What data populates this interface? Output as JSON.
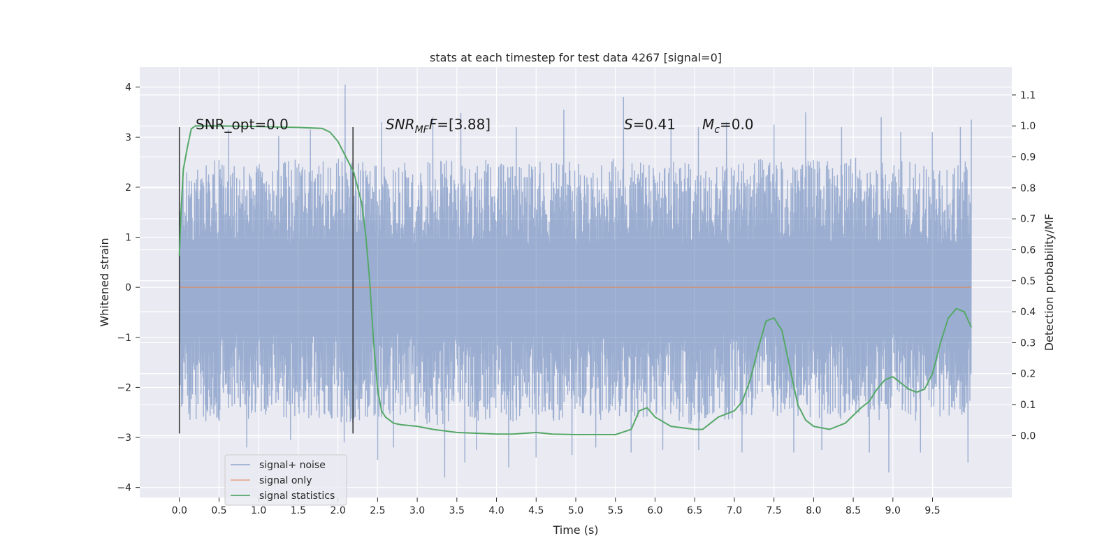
{
  "chart_data": {
    "type": "line",
    "title": "stats at each timestep for test data 4267 [signal=0]",
    "xlabel": "Time (s)",
    "ylabel": "Whitened strain",
    "ylabel_right": "Detection probability/MF",
    "xlim": [
      -0.5,
      10.5
    ],
    "ylim": [
      -4.2,
      4.4
    ],
    "ylim_right": [
      -0.2,
      1.19
    ],
    "x_ticks": [
      "0.0",
      "0.5",
      "1.0",
      "1.5",
      "2.0",
      "2.5",
      "3.0",
      "3.5",
      "4.0",
      "4.5",
      "5.0",
      "5.5",
      "6.0",
      "6.5",
      "7.0",
      "7.5",
      "8.0",
      "8.5",
      "9.0",
      "9.5"
    ],
    "y_ticks": [
      "−4",
      "−3",
      "−2",
      "−1",
      "0",
      "1",
      "2",
      "3",
      "4"
    ],
    "y_right_ticks": [
      "0.0",
      "0.1",
      "0.2",
      "0.3",
      "0.4",
      "0.5",
      "0.6",
      "0.7",
      "0.8",
      "0.9",
      "1.0",
      "1.1"
    ],
    "grid": true,
    "legend_position": "lower-left",
    "annotations": {
      "snr_opt": "SNR_opt=0.0",
      "snr_mf_prefix": "SNR",
      "snr_mf_sub": "MF",
      "snr_mf_value": "=[3.88]",
      "s_name": "S",
      "s_value": "=0.41",
      "mc_name": "M",
      "mc_sub": "c",
      "mc_value": "=0.0"
    },
    "vlines": [
      {
        "x": 0.0,
        "y": [
          -2.92,
          3.2
        ]
      },
      {
        "x": 2.19,
        "y": [
          -2.92,
          3.2
        ]
      }
    ],
    "series": [
      {
        "name": "signal+ noise",
        "axis": "left",
        "color": "#4c72b0",
        "x_range": [
          0.0,
          9.99
        ],
        "envelope": [
          [
            0.0,
            2.3,
            -2.6
          ],
          [
            0.25,
            2.5,
            -2.7
          ],
          [
            0.5,
            2.6,
            -2.8
          ],
          [
            0.75,
            2.4,
            -2.6
          ],
          [
            1.0,
            2.5,
            -2.7
          ],
          [
            1.25,
            2.5,
            -2.6
          ],
          [
            1.5,
            2.6,
            -2.7
          ],
          [
            1.75,
            2.5,
            -2.6
          ],
          [
            2.0,
            2.6,
            -2.7
          ],
          [
            2.25,
            2.5,
            -2.8
          ],
          [
            2.5,
            2.5,
            -2.7
          ],
          [
            2.75,
            2.6,
            -2.6
          ],
          [
            3.0,
            2.4,
            -2.7
          ],
          [
            3.25,
            2.6,
            -2.8
          ],
          [
            3.5,
            2.5,
            -2.6
          ],
          [
            3.75,
            2.5,
            -2.7
          ],
          [
            4.0,
            2.6,
            -2.6
          ],
          [
            4.25,
            2.4,
            -2.7
          ],
          [
            4.5,
            2.5,
            -2.6
          ],
          [
            4.75,
            2.6,
            -2.7
          ],
          [
            5.0,
            2.5,
            -2.6
          ],
          [
            5.25,
            2.5,
            -2.7
          ],
          [
            5.5,
            2.6,
            -2.6
          ],
          [
            5.75,
            2.5,
            -2.7
          ],
          [
            6.0,
            2.5,
            -2.6
          ],
          [
            6.25,
            2.6,
            -2.7
          ],
          [
            6.5,
            2.5,
            -2.8
          ],
          [
            6.75,
            2.4,
            -2.6
          ],
          [
            7.0,
            2.5,
            -2.7
          ],
          [
            7.25,
            2.6,
            -2.6
          ],
          [
            7.5,
            2.5,
            -2.7
          ],
          [
            7.75,
            2.5,
            -2.6
          ],
          [
            8.0,
            2.6,
            -2.7
          ],
          [
            8.25,
            2.5,
            -2.6
          ],
          [
            8.5,
            2.6,
            -2.8
          ],
          [
            8.75,
            2.5,
            -2.7
          ],
          [
            9.0,
            2.5,
            -2.6
          ],
          [
            9.25,
            2.6,
            -2.7
          ],
          [
            9.5,
            2.4,
            -2.6
          ],
          [
            9.75,
            2.5,
            -2.7
          ],
          [
            9.99,
            2.6,
            -2.6
          ]
        ],
        "peaks": [
          [
            0.62,
            3.15
          ],
          [
            0.85,
            -3.2
          ],
          [
            1.25,
            3.02
          ],
          [
            1.4,
            -3.05
          ],
          [
            1.65,
            3.15
          ],
          [
            2.09,
            4.05
          ],
          [
            2.08,
            -3.1
          ],
          [
            2.5,
            -3.45
          ],
          [
            2.55,
            3.3
          ],
          [
            2.7,
            -3.2
          ],
          [
            3.2,
            3.4
          ],
          [
            3.35,
            -3.8
          ],
          [
            3.55,
            3.48
          ],
          [
            3.6,
            -3.5
          ],
          [
            3.75,
            -3.25
          ],
          [
            4.15,
            -3.6
          ],
          [
            4.25,
            3.2
          ],
          [
            4.5,
            -3.4
          ],
          [
            4.85,
            3.55
          ],
          [
            4.95,
            -3.35
          ],
          [
            5.25,
            -3.2
          ],
          [
            5.6,
            3.8
          ],
          [
            5.7,
            -3.3
          ],
          [
            6.2,
            3.3
          ],
          [
            6.1,
            -3.25
          ],
          [
            6.55,
            3.2
          ],
          [
            6.55,
            -3.25
          ],
          [
            6.9,
            3.3
          ],
          [
            7.1,
            -3.3
          ],
          [
            7.5,
            3.25
          ],
          [
            7.75,
            -3.3
          ],
          [
            7.9,
            3.5
          ],
          [
            8.1,
            -3.25
          ],
          [
            8.35,
            3.2
          ],
          [
            8.7,
            -3.3
          ],
          [
            8.85,
            3.4
          ],
          [
            8.95,
            -3.7
          ],
          [
            9.1,
            3.1
          ],
          [
            9.35,
            -3.3
          ],
          [
            9.5,
            3.1
          ],
          [
            9.85,
            3.2
          ],
          [
            9.95,
            -3.5
          ],
          [
            9.99,
            3.35
          ]
        ]
      },
      {
        "name": "signal only",
        "axis": "left",
        "color": "#dd8452",
        "x": [
          0.0,
          9.99
        ],
        "y": [
          0.0,
          0.0
        ]
      },
      {
        "name": "signal statistics",
        "axis": "right",
        "color": "#55a868",
        "x": [
          0.0,
          0.02,
          0.05,
          0.1,
          0.15,
          0.2,
          0.3,
          0.5,
          1.0,
          1.5,
          1.8,
          1.9,
          2.0,
          2.1,
          2.2,
          2.3,
          2.35,
          2.4,
          2.45,
          2.5,
          2.55,
          2.6,
          2.7,
          2.8,
          3.0,
          3.2,
          3.5,
          4.0,
          4.2,
          4.5,
          4.7,
          5.0,
          5.5,
          5.7,
          5.8,
          5.9,
          6.0,
          6.2,
          6.5,
          6.6,
          6.7,
          6.8,
          7.0,
          7.1,
          7.2,
          7.3,
          7.4,
          7.5,
          7.6,
          7.7,
          7.8,
          7.9,
          8.0,
          8.2,
          8.4,
          8.6,
          8.7,
          8.8,
          8.9,
          9.0,
          9.1,
          9.2,
          9.3,
          9.4,
          9.5,
          9.6,
          9.7,
          9.8,
          9.9,
          9.99
        ],
        "y": [
          0.58,
          0.72,
          0.86,
          0.93,
          0.99,
          1.0,
          1.0,
          1.0,
          0.998,
          0.995,
          0.992,
          0.98,
          0.95,
          0.9,
          0.85,
          0.75,
          0.65,
          0.5,
          0.3,
          0.15,
          0.08,
          0.06,
          0.04,
          0.035,
          0.03,
          0.02,
          0.01,
          0.005,
          0.005,
          0.01,
          0.005,
          0.003,
          0.003,
          0.02,
          0.08,
          0.09,
          0.06,
          0.03,
          0.02,
          0.02,
          0.04,
          0.06,
          0.08,
          0.11,
          0.18,
          0.28,
          0.37,
          0.38,
          0.34,
          0.22,
          0.1,
          0.05,
          0.03,
          0.02,
          0.04,
          0.09,
          0.11,
          0.15,
          0.18,
          0.19,
          0.17,
          0.15,
          0.14,
          0.15,
          0.2,
          0.3,
          0.38,
          0.41,
          0.4,
          0.35
        ]
      }
    ]
  }
}
